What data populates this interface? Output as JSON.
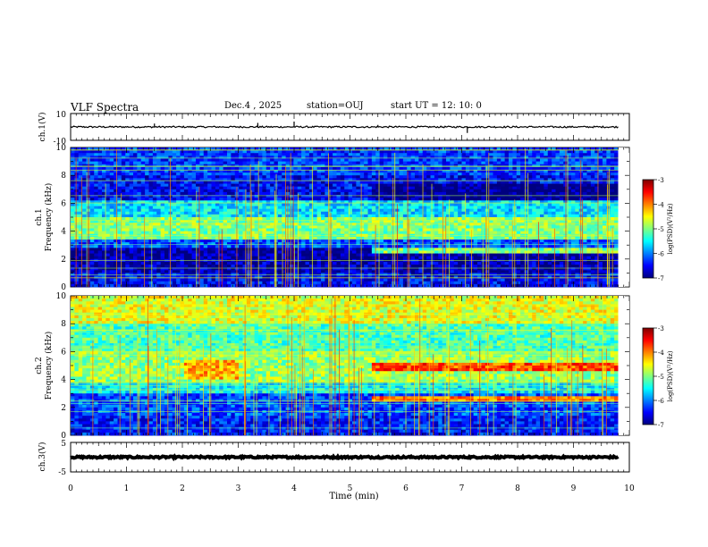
{
  "header": {
    "title": "VLF Spectra",
    "date": "Dec.4 , 2025",
    "station": "station=OUJ",
    "start": "start UT =  12: 10: 0"
  },
  "colors": {
    "colormap": [
      "#00007f",
      "#0000ff",
      "#0080ff",
      "#00ffff",
      "#80ff80",
      "#ffff00",
      "#ff8000",
      "#ff0000",
      "#7f0000"
    ],
    "trace": "#000000"
  },
  "chart_data": [
    {
      "type": "line",
      "ylabel": "ch.1(V)",
      "yticks": [
        "10",
        "-10"
      ],
      "ylim": [
        -10,
        10
      ],
      "x_range": [
        0,
        9.8
      ],
      "baseline": 0,
      "noise_amplitude": 0.6,
      "spikes": [
        {
          "x": 1.5,
          "y": 2.5
        },
        {
          "x": 3.35,
          "y": 3
        },
        {
          "x": 4.0,
          "y": 4
        },
        {
          "x": 5.5,
          "y": 1.5
        },
        {
          "x": 7.1,
          "y": -4.5
        }
      ]
    },
    {
      "type": "heatmap",
      "panel": "ch.1",
      "ylabel_line1": "ch.1",
      "ylabel_line2": "Frequency (kHz)",
      "xlim": [
        0,
        10
      ],
      "ylim": [
        0,
        10
      ],
      "data_end": 9.8,
      "yticks": [
        "0",
        "2",
        "4",
        "6",
        "8",
        "10"
      ],
      "colorbar_label": "log(PSD)(V²/Hz)",
      "colorbar_ticks": [
        "-3",
        "-4",
        "-5",
        "-6",
        "-7"
      ],
      "colorbar_range": [
        -7,
        -3
      ],
      "bands": [
        {
          "f0": 0,
          "f1": 1,
          "level": -6.5
        },
        {
          "f0": 1,
          "f1": 2,
          "level": -6.8
        },
        {
          "f0": 2,
          "f1": 2.8,
          "level": -6.9
        },
        {
          "f0": 2.8,
          "f1": 3.5,
          "level": -6.2
        },
        {
          "f0": 3.5,
          "f1": 5,
          "level": -5.0
        },
        {
          "f0": 5,
          "f1": 6.3,
          "level": -5.6
        },
        {
          "f0": 6.3,
          "f1": 8,
          "level": -6.5
        },
        {
          "f0": 8,
          "f1": 10,
          "level": -6.3
        }
      ],
      "events": [
        {
          "t0": 5.4,
          "t1": 9.8,
          "f0": 4.6,
          "f1": 5.0,
          "level": -4.9
        },
        {
          "t0": 5.4,
          "t1": 9.8,
          "f0": 2.4,
          "f1": 2.8,
          "level": -5.0
        },
        {
          "t0": 5.4,
          "t1": 9.8,
          "f0": 6.3,
          "f1": 7.5,
          "level": -7.0
        }
      ]
    },
    {
      "type": "heatmap",
      "panel": "ch.2",
      "ylabel_line1": "ch.2",
      "ylabel_line2": "Frequency (kHz)",
      "xlim": [
        0,
        10
      ],
      "ylim": [
        0,
        10
      ],
      "data_end": 9.8,
      "yticks": [
        "0",
        "2",
        "4",
        "6",
        "8",
        "10"
      ],
      "colorbar_label": "log(PSD)(V²/Hz)",
      "colorbar_ticks": [
        "-3",
        "-4",
        "-5",
        "-6",
        "-7"
      ],
      "colorbar_range": [
        -7,
        -3
      ],
      "bands": [
        {
          "f0": 0,
          "f1": 1.5,
          "level": -6.4
        },
        {
          "f0": 1.5,
          "f1": 3,
          "level": -6.2
        },
        {
          "f0": 3,
          "f1": 3.8,
          "level": -5.5
        },
        {
          "f0": 3.8,
          "f1": 6,
          "level": -4.9
        },
        {
          "f0": 6,
          "f1": 8,
          "level": -5.2
        },
        {
          "f0": 8,
          "f1": 10,
          "level": -4.6
        }
      ],
      "events": [
        {
          "t0": 2.0,
          "t1": 3.0,
          "f0": 4.0,
          "f1": 5.4,
          "level": -4.2
        },
        {
          "t0": 5.4,
          "t1": 9.8,
          "f0": 4.6,
          "f1": 5.2,
          "level": -3.8
        },
        {
          "t0": 5.4,
          "t1": 9.8,
          "f0": 2.4,
          "f1": 2.9,
          "level": -4.0
        }
      ]
    },
    {
      "type": "line",
      "ylabel": "ch.3(V)",
      "yticks": [
        "5",
        "-5"
      ],
      "ylim": [
        -5,
        5
      ],
      "x_range": [
        0,
        9.8
      ],
      "baseline": 0,
      "noise_amplitude": 0.3,
      "spikes": [],
      "xlabel": "Time (min)",
      "xticks": [
        "0",
        "1",
        "2",
        "3",
        "4",
        "5",
        "6",
        "7",
        "8",
        "9",
        "10"
      ]
    }
  ]
}
